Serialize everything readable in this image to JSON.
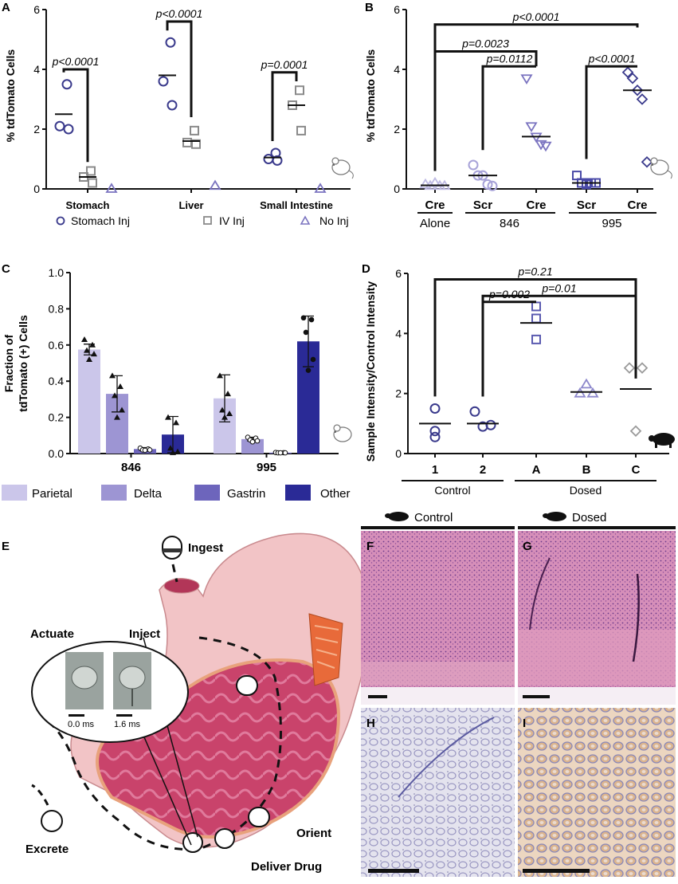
{
  "panels": {
    "A": {
      "letter": "A",
      "ylabel": "% tdTomato Cells",
      "yticks": [
        "0",
        "2",
        "4",
        "6"
      ],
      "groups": [
        "Stomach",
        "Liver",
        "Small Intestine"
      ],
      "pvalues": [
        "p<0.0001",
        "p<0.0001",
        "p=0.0001"
      ],
      "legend": [
        "Stomach Inj",
        "IV Inj",
        "No Inj"
      ]
    },
    "B": {
      "letter": "B",
      "ylabel": "% tdTomato Cells",
      "yticks": [
        "0",
        "2",
        "4",
        "6"
      ],
      "cats": [
        "Cre",
        "Scr",
        "Cre",
        "Scr",
        "Cre"
      ],
      "groups": [
        "Alone",
        "846",
        "995"
      ],
      "pvalues": [
        "p<0.0001",
        "p=0.0023",
        "p=0.0112",
        "p<0.0001"
      ]
    },
    "C": {
      "letter": "C",
      "ylabel1": "Fraction of",
      "ylabel2": "tdTomato (+) Cells",
      "yticks": [
        "0.0",
        "0.2",
        "0.4",
        "0.6",
        "0.8",
        "1.0"
      ],
      "groups": [
        "846",
        "995"
      ],
      "legend": [
        "Parietal",
        "Delta",
        "Gastrin",
        "Other"
      ]
    },
    "D": {
      "letter": "D",
      "ylabel": "Sample Intensity/Control Intensity",
      "yticks": [
        "0",
        "2",
        "4",
        "6"
      ],
      "cats": [
        "1",
        "2",
        "A",
        "B",
        "C"
      ],
      "groups": [
        "Control",
        "Dosed"
      ],
      "pvalues": [
        "p=0.21",
        "p=0.01",
        "p=0.002"
      ]
    },
    "E": {
      "letter": "E",
      "labels": {
        "ingest": "Ingest",
        "actuate": "Actuate",
        "inject": "Inject",
        "orient": "Orient",
        "deliver": "Deliver Drug",
        "excrete": "Excrete",
        "t0": "0.0 ms",
        "t1": "1.6 ms"
      }
    },
    "histo": {
      "control": "Control",
      "dosed": "Dosed",
      "letters": [
        "F",
        "G",
        "H",
        "I"
      ]
    }
  },
  "colors": {
    "stomach_inj": "#3a3a8c",
    "iv_inj": "#8a8a8a",
    "no_inj": "#7b74c0",
    "parietal": "#cbc6ea",
    "delta": "#9d95d3",
    "gastrin": "#6d65bc",
    "other": "#2a2a96"
  },
  "chart_data": [
    {
      "panel": "A",
      "type": "scatter",
      "ylabel": "% tdTomato Cells",
      "ylim": [
        0,
        6
      ],
      "categories": [
        "Stomach",
        "Liver",
        "Small Intestine"
      ],
      "series": [
        {
          "name": "Stomach Inj",
          "values": [
            [
              3.5,
              2.1,
              2.0
            ],
            [
              4.9,
              3.6,
              2.8
            ],
            [
              1.2,
              1.0,
              0.95
            ]
          ],
          "means": [
            2.5,
            3.8,
            1.05
          ]
        },
        {
          "name": "IV Inj",
          "values": [
            [
              0.6,
              0.4,
              0.2
            ],
            [
              1.95,
              1.55,
              1.5
            ],
            [
              3.3,
              2.8,
              1.95
            ]
          ],
          "means": [
            0.4,
            1.6,
            2.8
          ]
        },
        {
          "name": "No Inj",
          "values": [
            [
              0.0
            ],
            [
              0.1
            ],
            [
              0.0
            ]
          ]
        }
      ],
      "annotations": [
        "p<0.0001",
        "p<0.0001",
        "p=0.0001"
      ]
    },
    {
      "panel": "B",
      "type": "scatter",
      "ylabel": "% tdTomato Cells",
      "ylim": [
        0,
        6
      ],
      "categories": [
        "Cre Alone",
        "Scr 846",
        "Cre 846",
        "Scr 995",
        "Cre 995"
      ],
      "values": [
        [
          0.15,
          0.1,
          0.2,
          0.1,
          0.1
        ],
        [
          0.8,
          0.45,
          0.45,
          0.15,
          0.1
        ],
        [
          3.7,
          2.1,
          1.75,
          1.5,
          1.45
        ],
        [
          0.45,
          0.2,
          0.15,
          0.2,
          0.2
        ],
        [
          3.9,
          3.7,
          3.3,
          3.0,
          0.9
        ]
      ],
      "means": [
        0.12,
        0.45,
        1.75,
        0.2,
        3.3
      ],
      "annotations": [
        "p<0.0001",
        "p=0.0023",
        "p=0.0112",
        "p<0.0001"
      ]
    },
    {
      "panel": "C",
      "type": "bar",
      "ylabel": "Fraction of tdTomato (+) Cells",
      "ylim": [
        0,
        1.0
      ],
      "categories": [
        "846",
        "995"
      ],
      "series": [
        {
          "name": "Parietal",
          "values": [
            0.575,
            0.305
          ],
          "err": [
            0.03,
            0.13
          ],
          "points": [
            [
              0.63,
              0.6,
              0.57,
              0.55,
              0.52
            ],
            [
              0.43,
              0.33,
              0.24,
              0.22,
              0.2
            ]
          ]
        },
        {
          "name": "Delta",
          "values": [
            0.33,
            0.08
          ],
          "err": [
            0.1,
            0.01
          ],
          "points": [
            [
              0.43,
              0.37,
              0.32,
              0.24,
              0.2
            ],
            [
              0.09,
              0.085,
              0.075,
              0.07,
              0.065
            ]
          ]
        },
        {
          "name": "Gastrin",
          "values": [
            0.025,
            0.005
          ],
          "err": [
            0.008,
            0.002
          ],
          "points": [
            [
              0.03,
              0.025,
              0.02,
              0.02,
              0.018
            ],
            [
              0.006,
              0.005,
              0.004,
              0.004,
              0.004
            ]
          ]
        },
        {
          "name": "Other",
          "values": [
            0.105,
            0.62
          ],
          "err": [
            0.1,
            0.14
          ],
          "points": [
            [
              0.2,
              0.17,
              0.03,
              0.01,
              0.005
            ],
            [
              0.75,
              0.74,
              0.67,
              0.52,
              0.46
            ]
          ]
        }
      ]
    },
    {
      "panel": "D",
      "type": "scatter",
      "ylabel": "Sample Intensity/Control Intensity",
      "ylim": [
        0,
        6
      ],
      "categories": [
        "1",
        "2",
        "A",
        "B",
        "C"
      ],
      "values": [
        [
          1.5,
          0.75,
          0.55
        ],
        [
          1.4,
          0.95,
          0.9
        ],
        [
          4.9,
          4.5,
          3.8
        ],
        [
          2.3,
          2.0,
          2.0
        ],
        [
          2.85,
          2.85,
          0.75
        ]
      ],
      "means": [
        1.0,
        1.0,
        4.35,
        2.05,
        2.15
      ],
      "annotations": [
        "p=0.21",
        "p=0.01",
        "p=0.002"
      ]
    }
  ]
}
